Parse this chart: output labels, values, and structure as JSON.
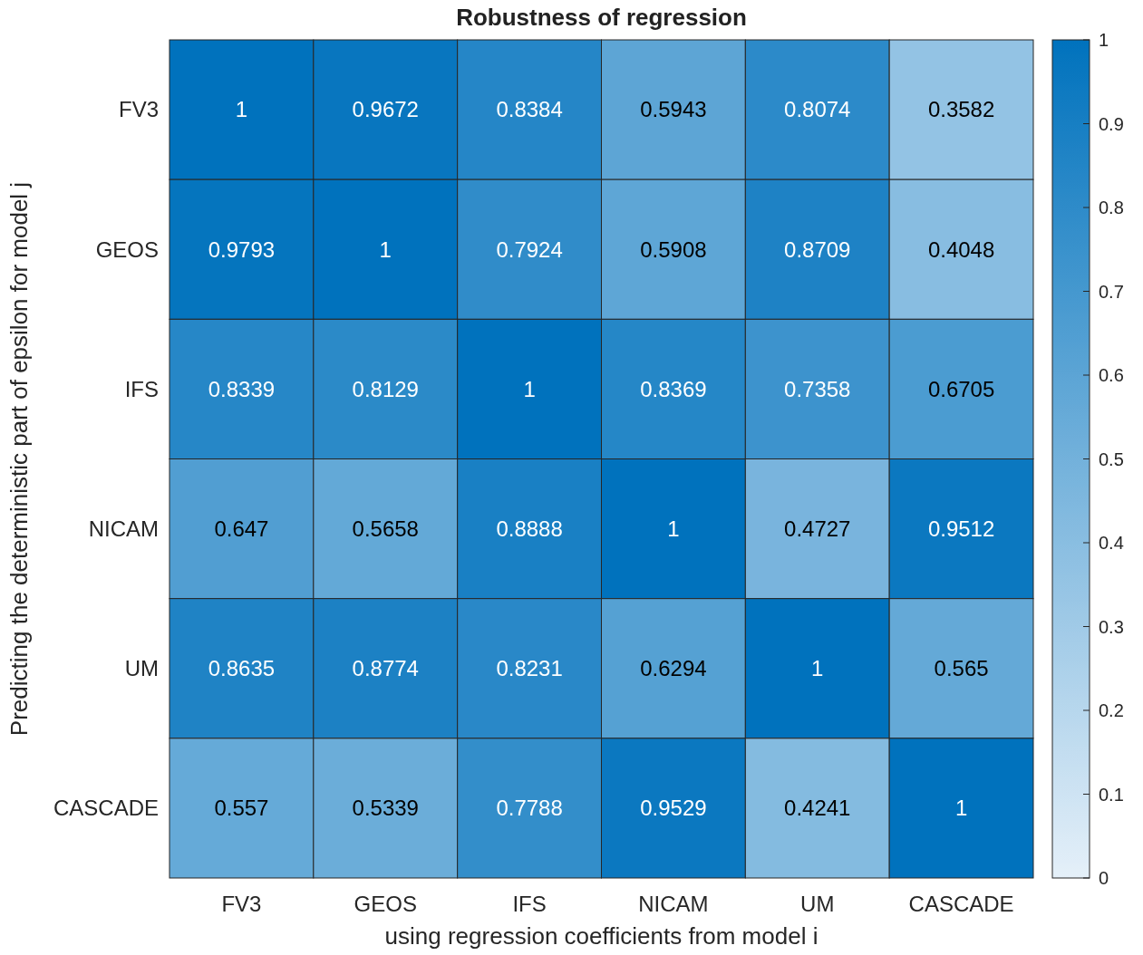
{
  "chart_data": {
    "type": "heatmap",
    "title": "Robustness of regression",
    "xlabel": "using regression coefficients from model i",
    "ylabel": "Predicting the deterministic part of epsilon for model j",
    "categories": [
      "FV3",
      "GEOS",
      "IFS",
      "NICAM",
      "UM",
      "CASCADE"
    ],
    "y_categories": [
      "FV3",
      "GEOS",
      "IFS",
      "NICAM",
      "UM",
      "CASCADE"
    ],
    "cells": [
      [
        1,
        0.9672,
        0.8384,
        0.5943,
        0.8074,
        0.3582
      ],
      [
        0.9793,
        1,
        0.7924,
        0.5908,
        0.8709,
        0.4048
      ],
      [
        0.8339,
        0.8129,
        1,
        0.8369,
        0.7358,
        0.6705
      ],
      [
        0.647,
        0.5658,
        0.8888,
        1,
        0.4727,
        0.9512
      ],
      [
        0.8635,
        0.8774,
        0.8231,
        0.6294,
        1,
        0.565
      ],
      [
        0.557,
        0.5339,
        0.7788,
        0.9529,
        0.4241,
        1
      ]
    ],
    "data_labels": true,
    "clim": [
      0,
      1
    ],
    "cticks": [
      0,
      0.1,
      0.2,
      0.3,
      0.4,
      0.5,
      0.6,
      0.7,
      0.8,
      0.9,
      1
    ]
  }
}
